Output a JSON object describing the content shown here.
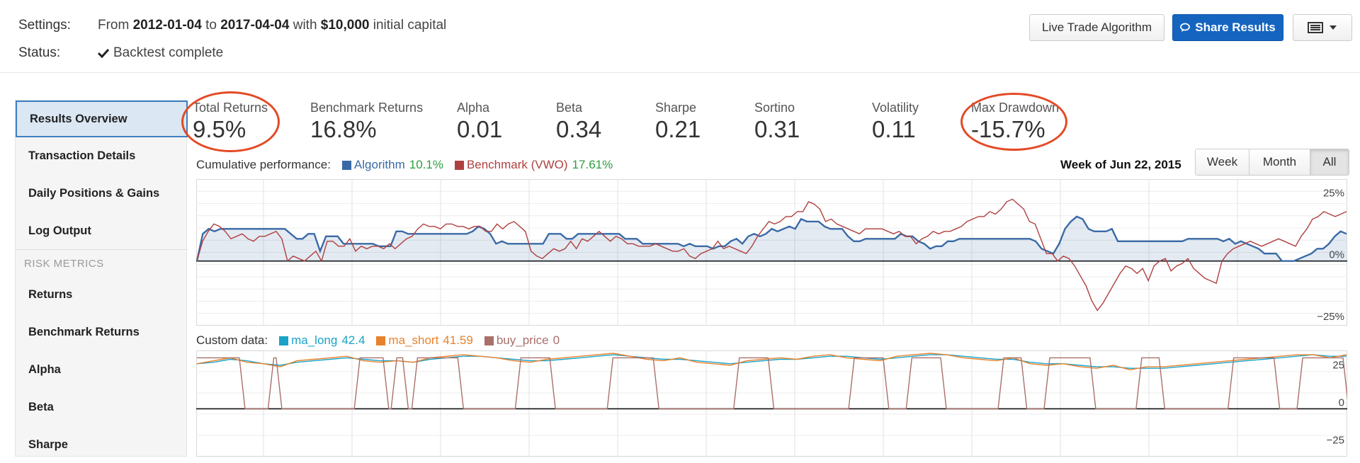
{
  "settings": {
    "label": "Settings:",
    "text_from": "From",
    "start_date": "2012-01-04",
    "text_to": "to",
    "end_date": "2017-04-04",
    "text_with": "with",
    "capital": "$10,000",
    "text_capital": "initial capital"
  },
  "status": {
    "label": "Status:",
    "check_icon": "checkmark-icon",
    "text": "Backtest complete"
  },
  "buttons": {
    "live_trade": "Live Trade Algorithm",
    "share": "Share Results",
    "share_icon": "comments-icon",
    "menu_icon": "list-icon"
  },
  "sidebar": {
    "items": [
      {
        "label": "Results Overview",
        "active": true
      },
      {
        "label": "Transaction Details"
      },
      {
        "label": "Daily Positions & Gains"
      },
      {
        "label": "Log Output"
      }
    ],
    "section_heading": "RISK METRICS",
    "risk_items": [
      {
        "label": "Returns"
      },
      {
        "label": "Benchmark Returns"
      },
      {
        "label": "Alpha"
      },
      {
        "label": "Beta"
      },
      {
        "label": "Sharpe"
      }
    ]
  },
  "metrics": [
    {
      "label": "Total Returns",
      "value": "9.5%"
    },
    {
      "label": "Benchmark Returns",
      "value": "16.8%"
    },
    {
      "label": "Alpha",
      "value": "0.01"
    },
    {
      "label": "Beta",
      "value": "0.34"
    },
    {
      "label": "Sharpe",
      "value": "0.21"
    },
    {
      "label": "Sortino",
      "value": "0.31"
    },
    {
      "label": "Volatility",
      "value": "0.11"
    },
    {
      "label": "Max Drawdown",
      "value": "-15.7%"
    }
  ],
  "performance": {
    "label": "Cumulative performance:",
    "algo_label": "Algorithm",
    "algo_value": "10.1%",
    "bench_label": "Benchmark (VWO)",
    "bench_value": "17.61%",
    "week_of": "Week of Jun 22, 2015",
    "ranges": [
      "Week",
      "Month",
      "All"
    ],
    "active_range": "All"
  },
  "custom": {
    "label": "Custom data:",
    "series": [
      {
        "name": "ma_long",
        "value": "42.4",
        "color": "#1aa3c8"
      },
      {
        "name": "ma_short",
        "value": "41.59",
        "color": "#e8822c"
      },
      {
        "name": "buy_price",
        "value": "0",
        "color": "#a9706a"
      }
    ]
  },
  "colors": {
    "algorithm": "#3a6aa6",
    "benchmark": "#b04040",
    "accent": "#1565c0",
    "highlight": "#e34a25"
  },
  "chart_data": [
    {
      "type": "line",
      "title": "Cumulative performance",
      "ylim": [
        -25,
        32
      ],
      "yticks": [
        "25%",
        "0%",
        "−25%"
      ],
      "series": [
        {
          "name": "Algorithm",
          "values": [
            0,
            11,
            13,
            12,
            13,
            13,
            13,
            13,
            13,
            13,
            13,
            13,
            13,
            13,
            13,
            13,
            11,
            9,
            9,
            11,
            11,
            4,
            10,
            10,
            10,
            7,
            7,
            7,
            7,
            7,
            7,
            6,
            6,
            6,
            12,
            12,
            11,
            11,
            11,
            11,
            11,
            11,
            11,
            11,
            11,
            11,
            11,
            12,
            14,
            13,
            11,
            7,
            8,
            7,
            7,
            7,
            7,
            7,
            7,
            7,
            11,
            11,
            11,
            9,
            9,
            11,
            11,
            11,
            11,
            11,
            11,
            11,
            11,
            9,
            9,
            9,
            7,
            7,
            7,
            7,
            7,
            7,
            7,
            6,
            7,
            6,
            6,
            6,
            5,
            6,
            6,
            8,
            9,
            7,
            10,
            11,
            10,
            11,
            13,
            12,
            13,
            14,
            13,
            17,
            16,
            16,
            16,
            14,
            13,
            13,
            13,
            10,
            8,
            8,
            9,
            9,
            9,
            9,
            9,
            9,
            11,
            10,
            10,
            8,
            7,
            5,
            6,
            6,
            8,
            8,
            9,
            9,
            9,
            9,
            9,
            9,
            9,
            9,
            9,
            9,
            9,
            9,
            9,
            8,
            5,
            4,
            3,
            7,
            13,
            16,
            18,
            17,
            13,
            12,
            12,
            12,
            13,
            8,
            8,
            8,
            8,
            8,
            8,
            8,
            8,
            8,
            8,
            8,
            8,
            9,
            9,
            9,
            9,
            9,
            9,
            8,
            9,
            7,
            8,
            7,
            6,
            5,
            3,
            3,
            3,
            0,
            0,
            0,
            1,
            2,
            3,
            5,
            5,
            7,
            10,
            12,
            11
          ],
          "color": "#3a6aa6"
        },
        {
          "name": "Benchmark (VWO)",
          "values": [
            0,
            8,
            12,
            15,
            14,
            12,
            9,
            10,
            11,
            9,
            8,
            10,
            10,
            11,
            12,
            9,
            0,
            2,
            1,
            0,
            2,
            4,
            0,
            8,
            8,
            6,
            6,
            9,
            4,
            6,
            5,
            6,
            6,
            5,
            7,
            5,
            7,
            9,
            10,
            13,
            15,
            14,
            14,
            13,
            15,
            15,
            14,
            14,
            13,
            14,
            14,
            12,
            12,
            15,
            13,
            15,
            16,
            14,
            12,
            4,
            2,
            1,
            3,
            5,
            4,
            5,
            8,
            5,
            9,
            8,
            10,
            12,
            10,
            8,
            10,
            9,
            7,
            7,
            6,
            6,
            6,
            7,
            6,
            5,
            4,
            4,
            5,
            2,
            1,
            3,
            4,
            5,
            8,
            5,
            6,
            5,
            4,
            3,
            6,
            10,
            13,
            16,
            15,
            16,
            18,
            18,
            20,
            20,
            24,
            23,
            21,
            16,
            17,
            15,
            14,
            13,
            12,
            11,
            13,
            13,
            13,
            13,
            12,
            11,
            12,
            10,
            10,
            7,
            9,
            10,
            12,
            11,
            12,
            12,
            13,
            14,
            16,
            17,
            18,
            18,
            20,
            19,
            21,
            24,
            25,
            23,
            21,
            16,
            15,
            9,
            3,
            3,
            0,
            2,
            1,
            -2,
            -6,
            -10,
            -16,
            -20,
            -17,
            -13,
            -9,
            -5,
            -2,
            -3,
            -5,
            -3,
            -8,
            -2,
            0,
            1,
            -4,
            -2,
            -1,
            1,
            -3,
            -5,
            -7,
            -8,
            -9,
            0,
            3,
            5,
            6,
            7,
            8,
            7,
            6,
            7,
            8,
            9,
            8,
            7,
            6,
            10,
            13,
            17,
            18,
            20,
            19,
            18,
            19,
            20
          ],
          "color": "#b04040"
        }
      ]
    },
    {
      "type": "line",
      "title": "Custom data",
      "ylim": [
        -30,
        37
      ],
      "yticks": [
        "25",
        "0",
        "−25"
      ],
      "series": [
        {
          "name": "ma_long",
          "values": [
            30,
            31,
            33,
            32,
            30,
            29,
            31,
            32,
            33,
            34,
            33,
            32,
            32,
            31,
            33,
            34,
            35,
            35,
            34,
            33,
            32,
            32,
            33,
            34,
            35,
            36,
            35,
            34,
            33,
            33,
            32,
            31,
            30,
            31,
            32,
            33,
            33,
            34,
            35,
            35,
            34,
            33,
            34,
            35,
            36,
            36,
            35,
            34,
            33,
            33,
            31,
            30,
            30,
            29,
            28,
            28,
            27,
            27,
            27,
            28,
            29,
            30,
            31,
            32,
            33,
            34,
            35,
            36,
            35,
            35
          ],
          "color": "#1aa3c8"
        },
        {
          "name": "ma_short",
          "values": [
            30,
            32,
            34,
            31,
            30,
            28,
            32,
            33,
            34,
            35,
            32,
            31,
            32,
            31,
            34,
            35,
            36,
            35,
            34,
            32,
            31,
            33,
            34,
            35,
            36,
            37,
            35,
            33,
            32,
            34,
            31,
            30,
            29,
            32,
            33,
            34,
            33,
            35,
            36,
            34,
            33,
            32,
            35,
            36,
            37,
            36,
            34,
            33,
            32,
            34,
            30,
            29,
            30,
            28,
            27,
            29,
            26,
            28,
            28,
            29,
            30,
            31,
            32,
            33,
            34,
            35,
            36,
            36,
            34,
            36
          ],
          "color": "#e8822c"
        },
        {
          "name": "buy_price",
          "values": [
            0,
            34
          ],
          "color": "#a9706a"
        }
      ]
    }
  ]
}
